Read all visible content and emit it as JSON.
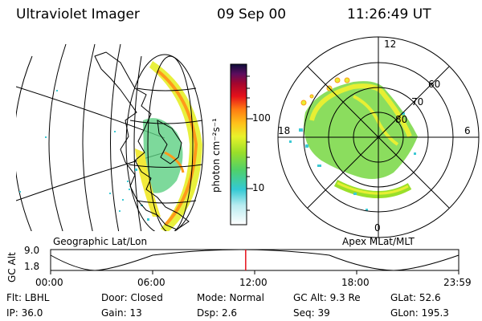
{
  "header": {
    "instrument": "Ultraviolet Imager",
    "date": "09 Sep 00",
    "time": "11:26:49 UT"
  },
  "colorbar": {
    "label": "photon cm⁻²s⁻¹",
    "ticks": [
      "100",
      "10"
    ]
  },
  "map_left": {
    "caption": "Geographic Lat/Lon"
  },
  "map_right": {
    "caption": "Apex MLat/MLT",
    "mlt_labels": [
      "12",
      "18",
      "6",
      "0"
    ],
    "lat_labels": [
      "60",
      "70",
      "80"
    ]
  },
  "orbit": {
    "axis_label": "GC Alt",
    "y_ticks": [
      "9.0",
      "1.8"
    ],
    "x_ticks": [
      "00:00",
      "06:00",
      "12:00",
      "18:00",
      "23:59"
    ],
    "current_fraction": 0.478
  },
  "status": {
    "flt": "Flt: LBHL",
    "door": "Door: Closed",
    "mode": "Mode: Normal",
    "gc_alt": "GC Alt: 9.3 Re",
    "glat": "GLat:  52.6",
    "ip": "IP: 36.0",
    "gain": "Gain: 13",
    "dsp": "Dsp:    2.6",
    "seq": "Seq: 39",
    "glon": "GLon: 195.3"
  }
}
